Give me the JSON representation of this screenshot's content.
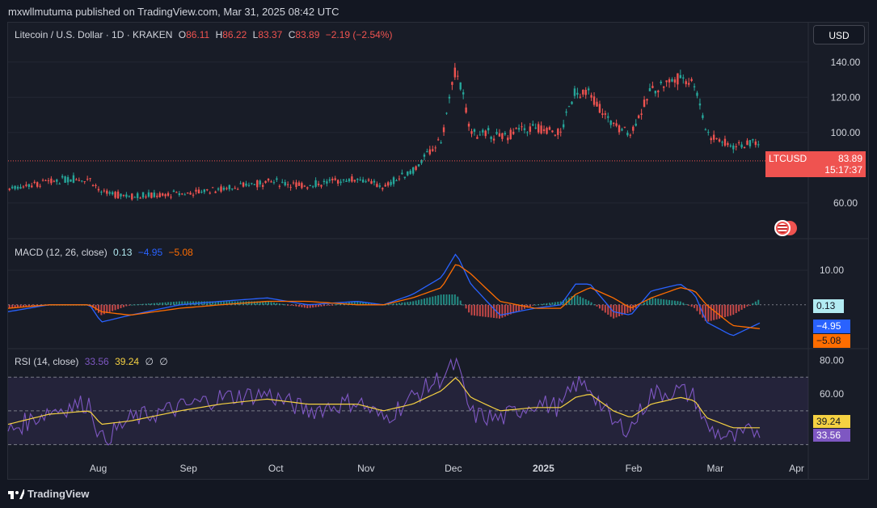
{
  "header": {
    "publisher_text": "mxwllmutuma published on TradingView.com, Mar 31, 2025 08:42 UTC"
  },
  "legend": {
    "symbol": "Litecoin / U.S. Dollar · 1D · KRAKEN",
    "o_label": "O",
    "o_val": "86.11",
    "h_label": "H",
    "h_val": "86.22",
    "l_label": "L",
    "l_val": "83.37",
    "c_label": "C",
    "c_val": "83.89",
    "change": "−2.19 (−2.54%)"
  },
  "currency_button": "USD",
  "price_tag": {
    "symbol": "LTCUSD",
    "price": "83.89",
    "countdown": "15:17:37"
  },
  "macd_legend": {
    "title": "MACD (12, 26, close)",
    "hist": "0.13",
    "macd": "−4.95",
    "signal": "−5.08"
  },
  "macd_tags": {
    "hist": "0.13",
    "macd": "−4.95",
    "signal": "−5.08"
  },
  "rsi_legend": {
    "title": "RSI (14, close)",
    "rsi": "33.56",
    "ma": "39.24",
    "sym1": "∅",
    "sym2": "∅"
  },
  "rsi_tags": {
    "ma": "39.24",
    "rsi": "33.56"
  },
  "footer": {
    "brand": "TradingView"
  },
  "colors": {
    "up": "#26a69a",
    "down": "#ef5350",
    "macd": "#2962ff",
    "signal": "#ff6d00",
    "rsi": "#7e57c2",
    "rsi_ma": "#f5d142"
  },
  "chart_data": [
    {
      "type": "candlestick",
      "title": "Litecoin / U.S. Dollar · 1D · KRAKEN",
      "x": [
        "2024-07-04",
        "2024-07-18",
        "2024-08-01",
        "2024-08-05",
        "2024-08-15",
        "2024-09-01",
        "2024-09-15",
        "2024-10-01",
        "2024-10-15",
        "2024-11-01",
        "2024-11-10",
        "2024-11-20",
        "2024-11-30",
        "2024-12-05",
        "2024-12-10",
        "2024-12-20",
        "2025-01-01",
        "2025-01-10",
        "2025-01-15",
        "2025-01-20",
        "2025-01-28",
        "2025-02-03",
        "2025-02-10",
        "2025-02-20",
        "2025-02-25",
        "2025-03-01",
        "2025-03-10",
        "2025-03-20",
        "2025-03-31"
      ],
      "close": [
        68,
        72,
        74,
        66,
        64,
        65,
        68,
        72,
        70,
        74,
        69,
        78,
        96,
        138,
        100,
        98,
        103,
        100,
        124,
        122,
        104,
        100,
        124,
        132,
        128,
        100,
        92,
        95,
        83.89
      ],
      "x_ticks": [
        "Aug",
        "Sep",
        "Oct",
        "Nov",
        "Dec",
        "2025",
        "Feb",
        "Mar",
        "Apr"
      ],
      "y_ticks": [
        "140.00",
        "120.00",
        "100.00",
        "60.00"
      ],
      "ylim": [
        42,
        150
      ],
      "last": 83.89
    },
    {
      "type": "line",
      "title": "MACD (12, 26, close)",
      "series": [
        {
          "name": "MACD",
          "values": [
            -2,
            0,
            0,
            -5,
            -3,
            0,
            1,
            2,
            0,
            1,
            0,
            3,
            8,
            15,
            6,
            -3,
            -1,
            0,
            6,
            6,
            -2,
            -3,
            4,
            6,
            3,
            -5,
            -9,
            -5,
            -4.95
          ]
        },
        {
          "name": "Signal",
          "values": [
            -1,
            0,
            0,
            -2,
            -3,
            -1,
            0,
            1,
            1,
            0,
            0,
            2,
            5,
            12,
            9,
            1,
            -1,
            -1,
            3,
            5,
            2,
            -1,
            2,
            5,
            4,
            0,
            -6,
            -7,
            -5.08
          ]
        }
      ],
      "histogram_last": 0.13,
      "y_ticks": [
        "10.00"
      ],
      "ylim": [
        -12,
        18
      ]
    },
    {
      "type": "line",
      "title": "RSI (14, close)",
      "series": [
        {
          "name": "RSI",
          "values": [
            38,
            50,
            55,
            32,
            45,
            52,
            58,
            60,
            50,
            56,
            45,
            58,
            70,
            78,
            48,
            45,
            55,
            52,
            66,
            64,
            42,
            40,
            60,
            62,
            58,
            40,
            33,
            40,
            33.56
          ]
        },
        {
          "name": "MA",
          "values": [
            42,
            48,
            50,
            42,
            44,
            50,
            54,
            57,
            54,
            54,
            50,
            54,
            62,
            70,
            58,
            50,
            52,
            52,
            58,
            60,
            50,
            46,
            54,
            58,
            56,
            46,
            40,
            40,
            39.24
          ]
        }
      ],
      "bands": [
        30,
        50,
        70
      ],
      "y_ticks": [
        "80.00",
        "60.00"
      ],
      "ylim": [
        25,
        85
      ]
    }
  ]
}
